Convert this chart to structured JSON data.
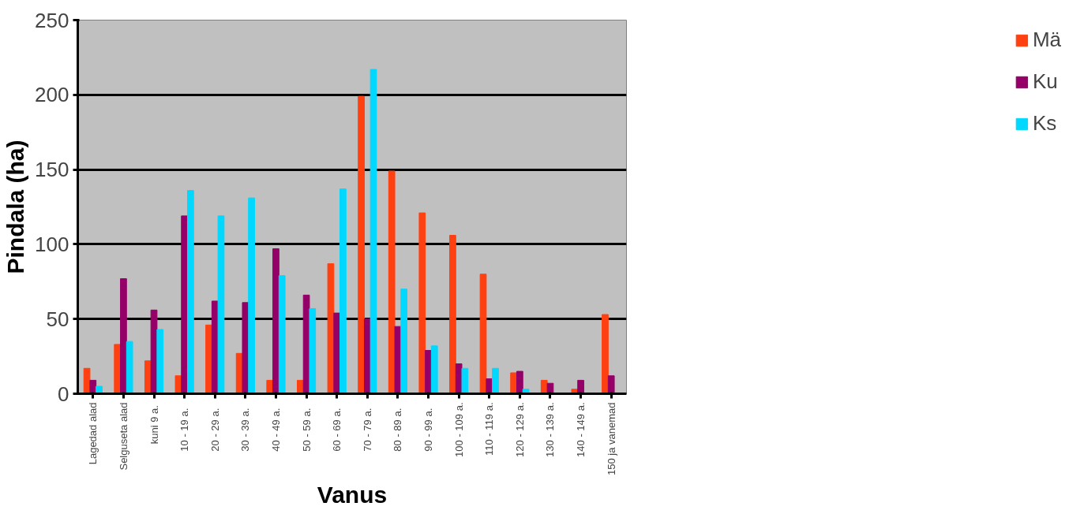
{
  "chart_data": {
    "type": "bar",
    "xlabel": "Vanus",
    "ylabel": "Pindala (ha)",
    "categories": [
      "Lagedad alad",
      "Selguseta alad",
      "kuni  9 a.",
      "10  -  19 a.",
      "20  -  29 a.",
      "30  -  39 a.",
      "40  -  49 a.",
      "50  -  59 a.",
      "60  -  69 a.",
      "70  -  79 a.",
      "80  -  89 a.",
      "90  -  99 a.",
      "100 - 109 a.",
      "110 - 119 a.",
      "120 - 129 a.",
      "130 - 139 a.",
      "140 - 149 a.",
      "150 ja vanemad"
    ],
    "series": [
      {
        "name": "Mä",
        "color": "#ff4010",
        "values": [
          17,
          33,
          22,
          12,
          46,
          27,
          9,
          9,
          87,
          199,
          149,
          121,
          106,
          80,
          14,
          9,
          3,
          53
        ]
      },
      {
        "name": "Ku",
        "color": "#940068",
        "values": [
          9,
          77,
          56,
          119,
          62,
          61,
          97,
          66,
          54,
          50,
          45,
          29,
          20,
          10,
          15,
          7,
          9,
          12
        ]
      },
      {
        "name": "Ks",
        "color": "#00d8ff",
        "values": [
          5,
          35,
          43,
          136,
          119,
          131,
          79,
          57,
          137,
          217,
          70,
          32,
          17,
          17,
          3,
          0,
          0,
          0
        ]
      }
    ],
    "ylim": [
      0,
      250
    ],
    "yticks": [
      0,
      50,
      100,
      150,
      200,
      250
    ],
    "grid": "y",
    "legend": "right"
  }
}
